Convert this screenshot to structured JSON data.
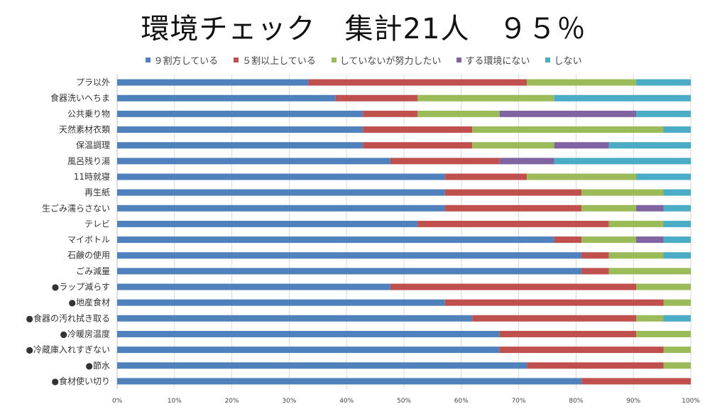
{
  "chart_data": {
    "type": "bar",
    "orientation": "horizontal",
    "stacked": "percent",
    "title": "環境チェック　集計21人　９５％",
    "xlabel": "",
    "ylabel": "",
    "xlim": [
      0,
      100
    ],
    "xticks": [
      "0%",
      "10%",
      "20%",
      "30%",
      "40%",
      "50%",
      "60%",
      "70%",
      "80%",
      "90%",
      "100%"
    ],
    "grid": true,
    "legend_position": "top",
    "categories": [
      "プラ以外",
      "食器洗いへちま",
      "公共乗り物",
      "天然素材衣類",
      "保温調理",
      "風呂残り湯",
      "11時就寝",
      "再生紙",
      "生ごみ濡らさない",
      "テレビ",
      "マイボトル",
      "石鹸の使用",
      "ごみ減量",
      "●ラップ減らす",
      "●地産食材",
      "●食器の汚れ拭き取る",
      "●冷暖房温度",
      "●冷蔵庫入れすぎない",
      "●節水",
      "●食材使い切り"
    ],
    "series": [
      {
        "name": "９割方している",
        "color": "#4f81bd",
        "values": [
          7,
          8,
          9,
          9,
          9,
          10,
          12,
          12,
          12,
          11,
          16,
          17,
          17,
          10,
          12,
          13,
          14,
          14,
          15,
          17
        ]
      },
      {
        "name": "５割以上している",
        "color": "#c0504d",
        "values": [
          8,
          3,
          2,
          4,
          4,
          4,
          3,
          5,
          5,
          7,
          1,
          1,
          1,
          9,
          8,
          6,
          5,
          6,
          5,
          4
        ]
      },
      {
        "name": "していないが努力したい",
        "color": "#9bbb59",
        "values": [
          4,
          5,
          3,
          7,
          3,
          0,
          4,
          3,
          2,
          2,
          2,
          2,
          3,
          2,
          1,
          1,
          2,
          1,
          1,
          0
        ]
      },
      {
        "name": "する環境にない",
        "color": "#8064a2",
        "values": [
          0,
          0,
          5,
          0,
          2,
          2,
          0,
          0,
          1,
          0,
          1,
          0,
          0,
          0,
          0,
          0,
          0,
          0,
          0,
          0
        ]
      },
      {
        "name": "しない",
        "color": "#4bacc6",
        "values": [
          2,
          5,
          2,
          1,
          3,
          5,
          2,
          1,
          1,
          1,
          1,
          1,
          0,
          0,
          0,
          1,
          0,
          0,
          0,
          0
        ]
      }
    ],
    "total_respondents": 21
  }
}
